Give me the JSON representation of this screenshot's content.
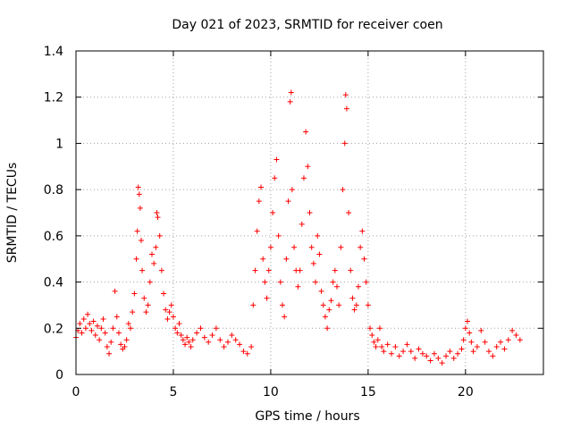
{
  "chart_data": {
    "type": "scatter",
    "title": "Day 021 of 2023, SRMTID for receiver coen",
    "xlabel": "GPS time / hours",
    "ylabel": "SRMTID / TECUs",
    "xlim": [
      0,
      24
    ],
    "ylim": [
      0,
      1.4
    ],
    "xticks": [
      0,
      5,
      10,
      15,
      20
    ],
    "xtick_labels": [
      "0",
      "5",
      "10",
      "15",
      "20"
    ],
    "yticks": [
      0,
      0.2,
      0.4,
      0.6,
      0.8,
      1.0,
      1.2,
      1.4
    ],
    "ytick_labels": [
      "0",
      "0.2",
      "0.4",
      "0.6",
      "0.8",
      "1",
      "1.2",
      "1.4"
    ],
    "grid": true,
    "marker": "+",
    "color": "#ff0000",
    "series": [
      {
        "name": "SRMTID",
        "points": [
          [
            0.0,
            0.16
          ],
          [
            0.1,
            0.19
          ],
          [
            0.2,
            0.22
          ],
          [
            0.3,
            0.18
          ],
          [
            0.4,
            0.24
          ],
          [
            0.5,
            0.2
          ],
          [
            0.6,
            0.26
          ],
          [
            0.7,
            0.22
          ],
          [
            0.8,
            0.19
          ],
          [
            0.9,
            0.23
          ],
          [
            1.0,
            0.17
          ],
          [
            1.1,
            0.21
          ],
          [
            1.2,
            0.15
          ],
          [
            1.3,
            0.2
          ],
          [
            1.4,
            0.24
          ],
          [
            1.5,
            0.18
          ],
          [
            1.6,
            0.12
          ],
          [
            1.7,
            0.09
          ],
          [
            1.8,
            0.14
          ],
          [
            1.9,
            0.2
          ],
          [
            2.0,
            0.36
          ],
          [
            2.1,
            0.25
          ],
          [
            2.2,
            0.18
          ],
          [
            2.3,
            0.13
          ],
          [
            2.4,
            0.11
          ],
          [
            2.5,
            0.12
          ],
          [
            2.6,
            0.15
          ],
          [
            2.7,
            0.22
          ],
          [
            2.8,
            0.2
          ],
          [
            2.9,
            0.27
          ],
          [
            3.0,
            0.35
          ],
          [
            3.1,
            0.5
          ],
          [
            3.15,
            0.62
          ],
          [
            3.2,
            0.81
          ],
          [
            3.25,
            0.78
          ],
          [
            3.3,
            0.72
          ],
          [
            3.35,
            0.58
          ],
          [
            3.4,
            0.45
          ],
          [
            3.5,
            0.33
          ],
          [
            3.6,
            0.27
          ],
          [
            3.7,
            0.3
          ],
          [
            3.8,
            0.4
          ],
          [
            3.9,
            0.52
          ],
          [
            4.0,
            0.48
          ],
          [
            4.1,
            0.55
          ],
          [
            4.15,
            0.7
          ],
          [
            4.2,
            0.68
          ],
          [
            4.3,
            0.6
          ],
          [
            4.4,
            0.45
          ],
          [
            4.5,
            0.35
          ],
          [
            4.6,
            0.28
          ],
          [
            4.7,
            0.24
          ],
          [
            4.8,
            0.27
          ],
          [
            4.9,
            0.3
          ],
          [
            5.0,
            0.25
          ],
          [
            5.1,
            0.2
          ],
          [
            5.2,
            0.18
          ],
          [
            5.3,
            0.22
          ],
          [
            5.4,
            0.17
          ],
          [
            5.5,
            0.15
          ],
          [
            5.6,
            0.13
          ],
          [
            5.7,
            0.16
          ],
          [
            5.8,
            0.14
          ],
          [
            5.9,
            0.12
          ],
          [
            6.0,
            0.15
          ],
          [
            6.2,
            0.18
          ],
          [
            6.4,
            0.2
          ],
          [
            6.6,
            0.16
          ],
          [
            6.8,
            0.14
          ],
          [
            7.0,
            0.17
          ],
          [
            7.2,
            0.2
          ],
          [
            7.4,
            0.15
          ],
          [
            7.6,
            0.12
          ],
          [
            7.8,
            0.14
          ],
          [
            8.0,
            0.17
          ],
          [
            8.2,
            0.15
          ],
          [
            8.4,
            0.13
          ],
          [
            8.6,
            0.1
          ],
          [
            8.8,
            0.09
          ],
          [
            9.0,
            0.12
          ],
          [
            9.1,
            0.3
          ],
          [
            9.2,
            0.45
          ],
          [
            9.3,
            0.62
          ],
          [
            9.4,
            0.75
          ],
          [
            9.5,
            0.81
          ],
          [
            9.6,
            0.5
          ],
          [
            9.7,
            0.4
          ],
          [
            9.8,
            0.33
          ],
          [
            9.9,
            0.45
          ],
          [
            10.0,
            0.55
          ],
          [
            10.1,
            0.7
          ],
          [
            10.2,
            0.85
          ],
          [
            10.3,
            0.93
          ],
          [
            10.4,
            0.6
          ],
          [
            10.5,
            0.4
          ],
          [
            10.6,
            0.3
          ],
          [
            10.7,
            0.25
          ],
          [
            10.8,
            0.5
          ],
          [
            10.9,
            0.75
          ],
          [
            11.0,
            1.18
          ],
          [
            11.05,
            1.22
          ],
          [
            11.1,
            0.8
          ],
          [
            11.2,
            0.55
          ],
          [
            11.3,
            0.45
          ],
          [
            11.4,
            0.38
          ],
          [
            11.5,
            0.45
          ],
          [
            11.6,
            0.65
          ],
          [
            11.7,
            0.85
          ],
          [
            11.8,
            1.05
          ],
          [
            11.9,
            0.9
          ],
          [
            12.0,
            0.7
          ],
          [
            12.1,
            0.55
          ],
          [
            12.2,
            0.48
          ],
          [
            12.3,
            0.4
          ],
          [
            12.4,
            0.6
          ],
          [
            12.5,
            0.52
          ],
          [
            12.6,
            0.36
          ],
          [
            12.7,
            0.3
          ],
          [
            12.8,
            0.25
          ],
          [
            12.9,
            0.2
          ],
          [
            13.0,
            0.28
          ],
          [
            13.1,
            0.32
          ],
          [
            13.2,
            0.4
          ],
          [
            13.3,
            0.45
          ],
          [
            13.4,
            0.38
          ],
          [
            13.5,
            0.3
          ],
          [
            13.6,
            0.55
          ],
          [
            13.7,
            0.8
          ],
          [
            13.8,
            1.0
          ],
          [
            13.85,
            1.21
          ],
          [
            13.9,
            1.15
          ],
          [
            14.0,
            0.7
          ],
          [
            14.1,
            0.45
          ],
          [
            14.2,
            0.33
          ],
          [
            14.3,
            0.28
          ],
          [
            14.4,
            0.3
          ],
          [
            14.5,
            0.38
          ],
          [
            14.6,
            0.55
          ],
          [
            14.7,
            0.62
          ],
          [
            14.8,
            0.5
          ],
          [
            14.9,
            0.4
          ],
          [
            15.0,
            0.3
          ],
          [
            15.1,
            0.2
          ],
          [
            15.2,
            0.17
          ],
          [
            15.3,
            0.14
          ],
          [
            15.4,
            0.12
          ],
          [
            15.5,
            0.15
          ],
          [
            15.6,
            0.2
          ],
          [
            15.7,
            0.12
          ],
          [
            15.8,
            0.1
          ],
          [
            16.0,
            0.13
          ],
          [
            16.2,
            0.09
          ],
          [
            16.4,
            0.12
          ],
          [
            16.6,
            0.08
          ],
          [
            16.8,
            0.1
          ],
          [
            17.0,
            0.13
          ],
          [
            17.2,
            0.1
          ],
          [
            17.4,
            0.07
          ],
          [
            17.6,
            0.11
          ],
          [
            17.8,
            0.09
          ],
          [
            18.0,
            0.08
          ],
          [
            18.2,
            0.06
          ],
          [
            18.4,
            0.09
          ],
          [
            18.6,
            0.07
          ],
          [
            18.8,
            0.05
          ],
          [
            19.0,
            0.08
          ],
          [
            19.2,
            0.1
          ],
          [
            19.4,
            0.07
          ],
          [
            19.6,
            0.09
          ],
          [
            19.8,
            0.11
          ],
          [
            19.9,
            0.15
          ],
          [
            20.0,
            0.2
          ],
          [
            20.1,
            0.23
          ],
          [
            20.2,
            0.18
          ],
          [
            20.3,
            0.14
          ],
          [
            20.4,
            0.1
          ],
          [
            20.6,
            0.12
          ],
          [
            20.8,
            0.19
          ],
          [
            21.0,
            0.14
          ],
          [
            21.2,
            0.1
          ],
          [
            21.4,
            0.08
          ],
          [
            21.6,
            0.12
          ],
          [
            21.8,
            0.14
          ],
          [
            22.0,
            0.11
          ],
          [
            22.2,
            0.15
          ],
          [
            22.4,
            0.19
          ],
          [
            22.6,
            0.17
          ],
          [
            22.8,
            0.15
          ]
        ]
      }
    ]
  }
}
